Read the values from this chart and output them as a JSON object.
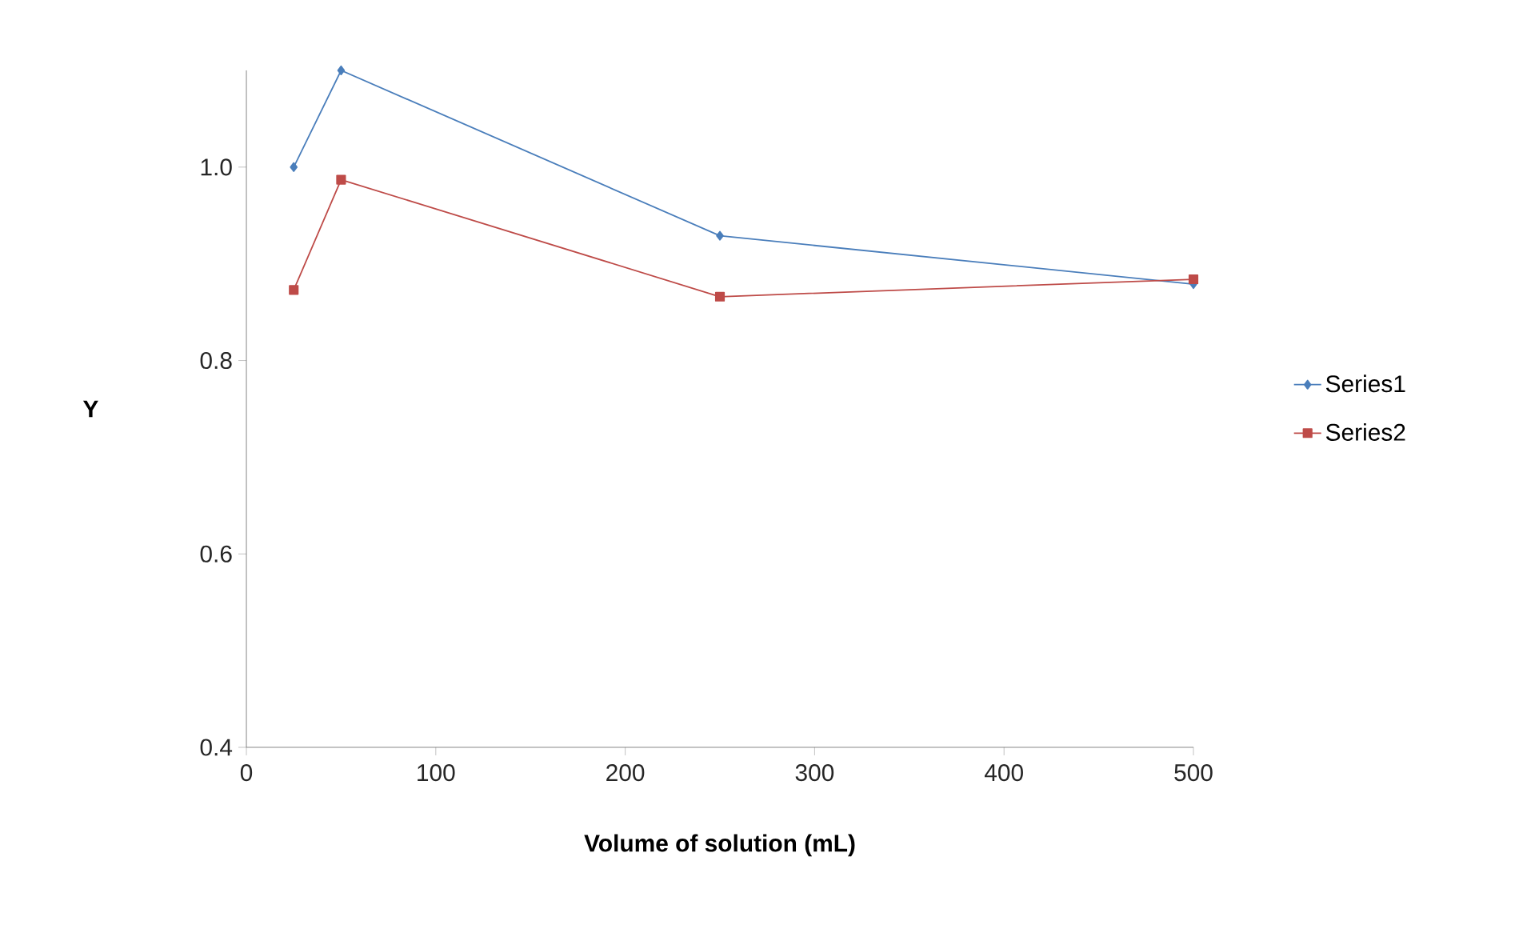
{
  "chart_data": {
    "type": "line",
    "xlabel": "Volume of solution  (mL)",
    "ylabel": "Y",
    "x": [
      25,
      50,
      250,
      500
    ],
    "series": [
      {
        "name": "Series1",
        "color": "#4a7ebb",
        "marker": "diamond",
        "values": [
          1.0,
          1.1,
          0.929,
          0.879
        ]
      },
      {
        "name": "Series2",
        "color": "#be4b48",
        "marker": "square",
        "values": [
          0.873,
          0.987,
          0.866,
          0.884
        ]
      }
    ],
    "xlim": [
      0,
      500
    ],
    "xticks": [
      0,
      100,
      200,
      300,
      400,
      500
    ],
    "ylim": [
      0.4,
      1.1
    ],
    "yticks": [
      {
        "value": 0.4,
        "label": "0.4"
      },
      {
        "value": 0.6,
        "label": "0.6"
      },
      {
        "value": 0.8,
        "label": "0.8"
      },
      {
        "value": 1.0,
        "label": "1.0"
      }
    ],
    "legend": "right",
    "grid": false
  }
}
